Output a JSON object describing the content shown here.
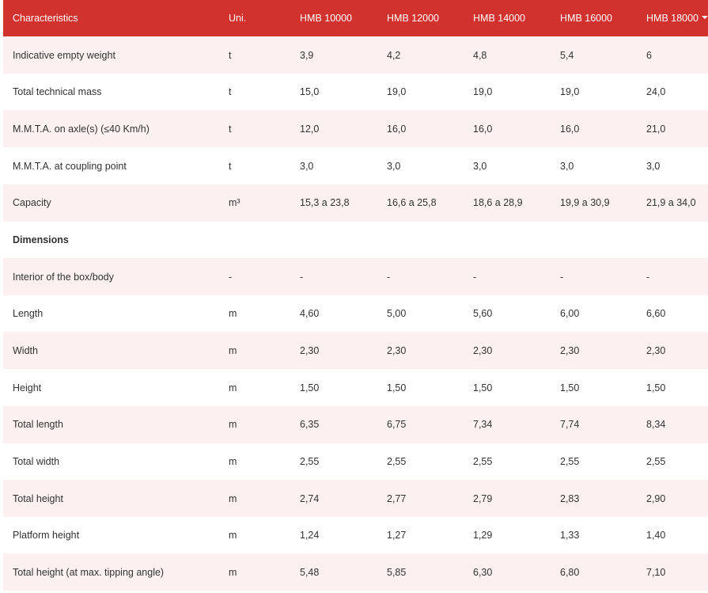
{
  "table": {
    "header": [
      "Characteristics",
      "Uni.",
      "HMB 10000",
      "HMB 12000",
      "HMB 14000",
      "HMB 16000",
      "HMB 18000"
    ],
    "rows": [
      {
        "cells": [
          "Indicative empty weight",
          "t",
          "3,9",
          "4,2",
          "4,8",
          "5,4",
          "6"
        ]
      },
      {
        "cells": [
          "Total technical mass",
          "t",
          "15,0",
          "19,0",
          "19,0",
          "19,0",
          "24,0"
        ]
      },
      {
        "cells": [
          "M.M.T.A. on axle(s) (≤40 Km/h)",
          "t",
          "12,0",
          "16,0",
          "16,0",
          "16,0",
          "21,0"
        ]
      },
      {
        "cells": [
          "M.M.T.A. at coupling point",
          "t",
          "3,0",
          "3,0",
          "3,0",
          "3,0",
          "3,0"
        ]
      },
      {
        "cells": [
          "Capacity",
          "m³",
          "15,3 a 23,8",
          "16,6 a 25,8",
          "18,6 a 28,9",
          "19,9 a 30,9",
          "21,9 a 34,0"
        ]
      },
      {
        "section": "Dimensions"
      },
      {
        "cells": [
          "Interior of the box/body",
          "-",
          "-",
          "-",
          "-",
          "-",
          "-"
        ]
      },
      {
        "cells": [
          "Length",
          "m",
          "4,60",
          "5,00",
          "5,60",
          "6,00",
          "6,60"
        ]
      },
      {
        "cells": [
          "Width",
          "m",
          "2,30",
          "2,30",
          "2,30",
          "2,30",
          "2,30"
        ]
      },
      {
        "cells": [
          "Height",
          "m",
          "1,50",
          "1,50",
          "1,50",
          "1,50",
          "1,50"
        ]
      },
      {
        "cells": [
          "Total length",
          "m",
          "6,35",
          "6,75",
          "7,34",
          "7,74",
          "8,34"
        ]
      },
      {
        "cells": [
          "Total width",
          "m",
          "2,55",
          "2,55",
          "2,55",
          "2,55",
          "2,55"
        ]
      },
      {
        "cells": [
          "Total height",
          "m",
          "2,74",
          "2,77",
          "2,79",
          "2,83",
          "2,90"
        ]
      },
      {
        "cells": [
          "Platform height",
          "m",
          "1,24",
          "1,27",
          "1,29",
          "1,33",
          "1,40"
        ]
      },
      {
        "cells": [
          "Total height (at max. tipping angle)",
          "m",
          "5,48",
          "5,85",
          "6,30",
          "6,80",
          "7,10"
        ]
      }
    ]
  }
}
